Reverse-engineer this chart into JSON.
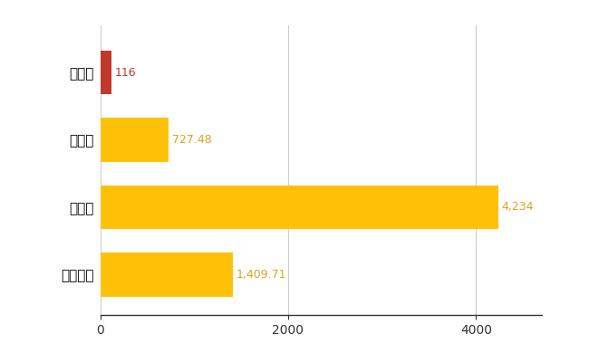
{
  "categories": [
    "南部町",
    "県平均",
    "県最大",
    "全国平均"
  ],
  "values": [
    116,
    727.48,
    4234,
    1409.71
  ],
  "colors": [
    "#C0392B",
    "#FFC107",
    "#FFC107",
    "#FFC107"
  ],
  "labels": [
    "116",
    "727.48",
    "4,234",
    "1,409.71"
  ],
  "label_colors": [
    "#C0392B",
    "#DAA520",
    "#DAA520",
    "#DAA520"
  ],
  "xlim": [
    0,
    4700
  ],
  "xticks": [
    0,
    2000,
    4000
  ],
  "grid_color": "#CCCCCC",
  "bg_color": "#FFFFFF",
  "bar_height": 0.65,
  "figsize": [
    6.5,
    4.0
  ],
  "dpi": 100
}
